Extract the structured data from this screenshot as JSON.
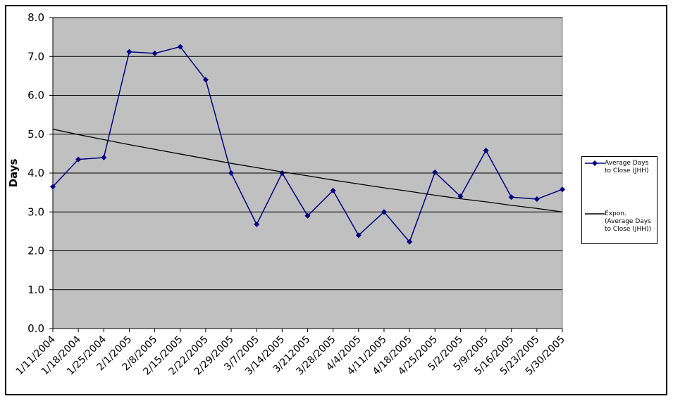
{
  "chart_data": {
    "type": "line",
    "y_label": "Days",
    "categories": [
      "1/11/2004",
      "1/18/2004",
      "1/25/2004",
      "2/1/2005",
      "2/8/2005",
      "2/15/2005",
      "2/22/2005",
      "2/29/2005",
      "3/7/2005",
      "3/14/2005",
      "3/212005",
      "3/28/2005",
      "4/4/2005",
      "4/11/2005",
      "4/18/2005",
      "4/25/2005",
      "5/2/2005",
      "5/9/2005",
      "5/16/2005",
      "5/23/2005",
      "5/30/2005"
    ],
    "series": [
      {
        "name": "Average Days to Close (JHH)",
        "color": "#000080",
        "marker": "diamond",
        "values": [
          3.65,
          4.35,
          4.4,
          7.12,
          7.08,
          7.25,
          6.4,
          4.0,
          2.68,
          4.0,
          2.9,
          3.55,
          2.4,
          3.0,
          2.23,
          4.02,
          3.4,
          4.58,
          3.38,
          3.33,
          3.58
        ]
      },
      {
        "name": "Expon. (Average Days to Close (JHH))",
        "color": "#000000",
        "marker": "none",
        "values": [
          5.13,
          4.99,
          4.86,
          4.73,
          4.61,
          4.49,
          4.37,
          4.25,
          4.14,
          4.03,
          3.93,
          3.82,
          3.72,
          3.62,
          3.53,
          3.43,
          3.34,
          3.26,
          3.17,
          3.09,
          3.0
        ]
      }
    ],
    "ylim": [
      0,
      8
    ],
    "yticks": [
      {
        "value": 0,
        "label": "0.0"
      },
      {
        "value": 1,
        "label": "1.0"
      },
      {
        "value": 2,
        "label": "2.0"
      },
      {
        "value": 3,
        "label": "3.0"
      },
      {
        "value": 4,
        "label": "4.0"
      },
      {
        "value": 5,
        "label": "5.0"
      },
      {
        "value": 6,
        "label": "6.0"
      },
      {
        "value": 7,
        "label": "7.0"
      },
      {
        "value": 8,
        "label": "8.0"
      }
    ],
    "grid": true,
    "legend": "right"
  }
}
